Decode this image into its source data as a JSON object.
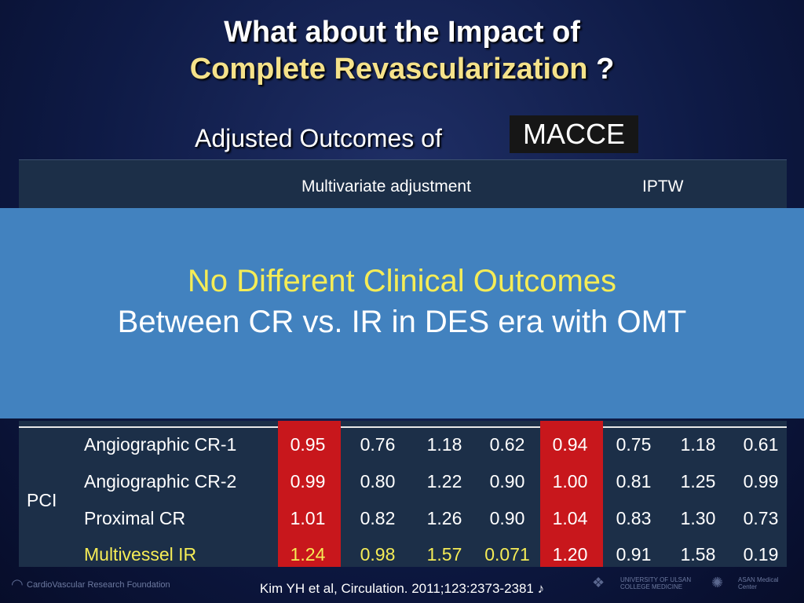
{
  "title": {
    "line1": "What about the Impact of",
    "line2_highlight": "Complete Revascularization",
    "line2_suffix": " ?"
  },
  "subtitle": "Adjusted Outcomes of",
  "macce_label": "MACCE",
  "table": {
    "header_multivariate": "Multivariate adjustment",
    "header_iptw": "IPTW",
    "group_label": "PCI",
    "rows": [
      {
        "label": "Angiographic CR-1",
        "values": [
          "0.95",
          "0.76",
          "1.18",
          "0.62",
          "0.94",
          "0.75",
          "1.18",
          "0.61"
        ]
      },
      {
        "label": "Angiographic CR-2",
        "values": [
          "0.99",
          "0.80",
          "1.22",
          "0.90",
          "1.00",
          "0.81",
          "1.25",
          "0.99"
        ]
      },
      {
        "label": "Proximal CR",
        "values": [
          "1.01",
          "0.82",
          "1.26",
          "0.90",
          "1.04",
          "0.83",
          "1.30",
          "0.73"
        ]
      },
      {
        "label": "Multivessel IR",
        "values": [
          "1.24",
          "0.98",
          "1.57",
          "0.071",
          "1.20",
          "0.91",
          "1.58",
          "0.19"
        ]
      }
    ]
  },
  "overlay": {
    "line1": "No Different Clinical Outcomes",
    "line2": "Between CR vs. IR in DES era with OMT"
  },
  "footer": {
    "citation": "Kim YH et al, Circulation. 2011;123:2373-2381 ♪",
    "left_logo_text": "CardioVascular Research Foundation",
    "right_logo_a": "UNIVERSITY OF ULSAN COLLEGE MEDICINE",
    "right_logo_b": "ASAN Medical Center"
  },
  "colors": {
    "highlight_yellow": "#f5e28a",
    "overlay_blue": "#4282bf",
    "red_column": "#c8171c",
    "table_bg": "#1c2f48"
  }
}
